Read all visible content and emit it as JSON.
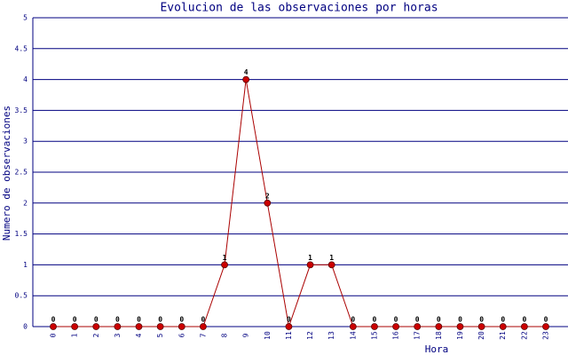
{
  "chart_data": {
    "type": "line",
    "title": "Evolucion de las observaciones por horas",
    "x_label": "Hora",
    "y_label": "Numero de observaciones",
    "categories": [
      "0",
      "1",
      "2",
      "3",
      "4",
      "5",
      "6",
      "7",
      "8",
      "9",
      "10",
      "11",
      "12",
      "13",
      "14",
      "15",
      "16",
      "17",
      "18",
      "19",
      "20",
      "21",
      "22",
      "23"
    ],
    "values": [
      0,
      0,
      0,
      0,
      0,
      0,
      0,
      0,
      1,
      4,
      2,
      0,
      1,
      1,
      0,
      0,
      0,
      0,
      0,
      0,
      0,
      0,
      0,
      0
    ],
    "color": "#cc0000",
    "line_color": "#aa0000",
    "ylim": [
      0,
      5
    ],
    "yticks": [
      0,
      0.5,
      1,
      1.5,
      2,
      2.5,
      3,
      3.5,
      4,
      4.5,
      5
    ],
    "grid": true,
    "grid_color": "#000080"
  }
}
